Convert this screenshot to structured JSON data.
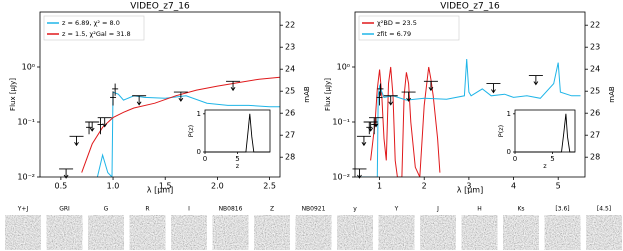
{
  "chart_data": [
    {
      "type": "line",
      "title": "VIDEO_z7_16",
      "xlabel": "λ [μm]",
      "ylabel": "Flux [μJy]",
      "y2label": "mAB",
      "log_y": true,
      "legend": "upper left",
      "xlim": [
        0.3,
        2.6
      ],
      "xticks": [
        0.5,
        {
          "value": 1,
          "label": "1.0"
        },
        1.5,
        {
          "value": 2,
          "label": "2.0"
        },
        2.5
      ],
      "ylim": [
        0.01,
        10
      ],
      "yticks": [
        {
          "value": 0.01,
          "label": "10⁻²"
        },
        {
          "value": 0.1,
          "label": "10⁻¹"
        },
        {
          "value": 1,
          "label": "10⁰"
        }
      ],
      "y2lim": [
        28.9,
        21.4
      ],
      "y2ticks": [
        22,
        23,
        24,
        25,
        26,
        27,
        28
      ],
      "series": [
        {
          "name": "z = 6.89, χ² = 8.0",
          "color": "#1fb5e8",
          "x": [
            0.85,
            0.9,
            0.95,
            0.99,
            1.0,
            1.05,
            1.1,
            1.2,
            1.3,
            1.5,
            1.7,
            1.9,
            2.1,
            2.3,
            2.5,
            2.6
          ],
          "values": [
            0.01,
            0.025,
            0.012,
            0.01,
            0.35,
            0.32,
            0.25,
            0.3,
            0.28,
            0.27,
            0.3,
            0.22,
            0.2,
            0.2,
            0.19,
            0.19
          ]
        },
        {
          "name": "z = 1.5, χ²Gal = 31.8",
          "color": "#e0191b",
          "x": [
            0.7,
            0.8,
            0.9,
            1.0,
            1.1,
            1.2,
            1.4,
            1.6,
            1.8,
            2.0,
            2.2,
            2.4,
            2.6
          ],
          "values": [
            0.012,
            0.04,
            0.08,
            0.12,
            0.15,
            0.18,
            0.22,
            0.3,
            0.38,
            0.45,
            0.52,
            0.6,
            0.65
          ]
        }
      ],
      "photometry": {
        "x": [
          0.77,
          0.88,
          1.0,
          1.02
        ],
        "values": [
          0.08,
          0.09,
          0.28,
          0.4
        ],
        "errors": [
          0.02,
          0.03,
          0.08,
          0.1
        ]
      },
      "upper_limits": {
        "x": [
          0.55,
          0.65,
          0.8,
          0.92,
          1.25,
          1.65,
          2.15
        ],
        "values": [
          0.014,
          0.055,
          0.1,
          0.12,
          0.3,
          0.35,
          0.55
        ]
      },
      "inset": {
        "xlabel": "z",
        "ylabel": "P(z)",
        "xlim": [
          0,
          10
        ],
        "ylim": [
          0,
          1.1
        ],
        "xticks": [
          0,
          5
        ],
        "yticks": [
          0,
          1
        ],
        "x": [
          0,
          6.3,
          6.6,
          6.9,
          7.2,
          7.5,
          10
        ],
        "values": [
          0,
          0,
          0.5,
          1,
          0.4,
          0,
          0
        ]
      }
    },
    {
      "type": "line",
      "title": "VIDEO_z7_16",
      "xlabel": "λ [μm]",
      "ylabel": "Flux [μJy]",
      "y2label": "mAB",
      "log_y": true,
      "legend": "upper left",
      "xlim": [
        0.45,
        5.6
      ],
      "xticks": [
        1,
        2,
        3,
        4,
        5
      ],
      "ylim": [
        0.01,
        10
      ],
      "yticks": [
        {
          "value": 0.01,
          "label": "10⁻²"
        },
        {
          "value": 0.1,
          "label": "10⁻¹"
        },
        {
          "value": 1,
          "label": "10⁰"
        }
      ],
      "y2lim": [
        28.9,
        21.4
      ],
      "y2ticks": [
        22,
        23,
        24,
        25,
        26,
        27,
        28
      ],
      "series": [
        {
          "name": "χ²BD = 23.5",
          "color": "#e0191b",
          "x": [
            0.8,
            0.9,
            0.95,
            1.0,
            1.05,
            1.1,
            1.15,
            1.2,
            1.25,
            1.3,
            1.35,
            1.4,
            1.5,
            1.55,
            1.6,
            1.65,
            1.7,
            1.8,
            1.9,
            2.0,
            2.1,
            2.15,
            2.2,
            2.3,
            2.35
          ],
          "values": [
            0.02,
            0.1,
            0.4,
            0.9,
            0.3,
            0.05,
            0.02,
            0.5,
            1.0,
            0.3,
            0.02,
            0.01,
            0.01,
            0.3,
            0.8,
            0.5,
            0.1,
            0.015,
            0.01,
            0.2,
            1.0,
            0.6,
            0.3,
            0.05,
            0.012
          ]
        },
        {
          "name": "zfit = 6.79",
          "color": "#1fb5e8",
          "x": [
            0.5,
            0.8,
            0.95,
            0.97,
            1.0,
            1.1,
            1.3,
            1.6,
            2.0,
            2.5,
            2.9,
            2.95,
            3.0,
            3.05,
            3.3,
            3.5,
            3.8,
            4.0,
            4.3,
            4.6,
            4.9,
            5.0,
            5.05,
            5.3,
            5.5
          ],
          "values": [
            0.01,
            0.01,
            0.01,
            0.3,
            0.45,
            0.28,
            0.3,
            0.25,
            0.27,
            0.26,
            0.3,
            1.4,
            0.35,
            0.3,
            0.4,
            0.3,
            0.32,
            0.28,
            0.3,
            0.27,
            0.5,
            1.2,
            0.35,
            0.3,
            0.3
          ]
        }
      ],
      "photometry": {
        "x": [
          0.77,
          0.88,
          1.0,
          1.02
        ],
        "values": [
          0.08,
          0.09,
          0.28,
          0.4
        ],
        "errors": [
          0.02,
          0.03,
          0.08,
          0.1
        ]
      },
      "upper_limits": {
        "x": [
          0.55,
          0.65,
          0.8,
          0.92,
          1.25,
          1.65,
          2.15,
          3.55,
          4.5
        ],
        "values": [
          0.014,
          0.055,
          0.1,
          0.12,
          0.3,
          0.35,
          0.55,
          0.5,
          0.7
        ]
      },
      "inset": {
        "xlabel": "z",
        "ylabel": "P(z)",
        "xlim": [
          0,
          8
        ],
        "ylim": [
          0,
          1.1
        ],
        "xticks": [
          0,
          5
        ],
        "yticks": [
          0,
          1
        ],
        "x": [
          0,
          6.2,
          6.5,
          6.79,
          7.0,
          7.3,
          8
        ],
        "values": [
          0,
          0,
          0.5,
          1,
          0.4,
          0,
          0
        ]
      }
    }
  ],
  "stamps": {
    "labels": [
      "Y+J",
      "GRI",
      "G",
      "R",
      "I",
      "NB0816",
      "Z",
      "NB0921",
      "y",
      "Y",
      "J",
      "H",
      "Ks",
      "[3.6]",
      "[4.5]"
    ]
  }
}
